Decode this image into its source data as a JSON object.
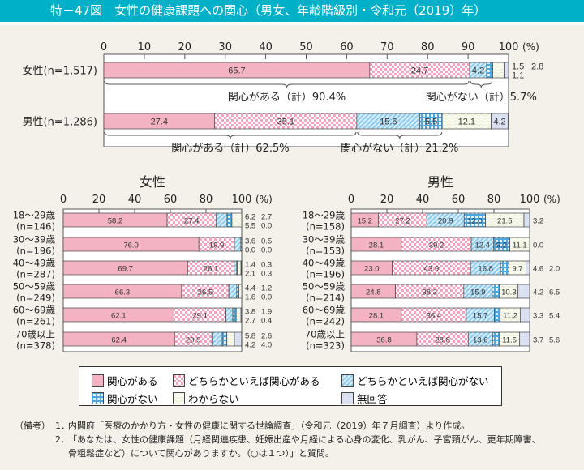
{
  "title": "特－47図　女性の健康課題への関心（男女、年齢階級別・令和元（2019）年）",
  "legend": [
    {
      "label": "関心がある",
      "pattern": "p0"
    },
    {
      "label": "どちらかといえば関心がある",
      "pattern": "p1"
    },
    {
      "label": "どちらかといえば関心がない",
      "pattern": "p2"
    },
    {
      "label": "関心がない",
      "pattern": "p3"
    },
    {
      "label": "わからない",
      "pattern": "p4"
    },
    {
      "label": "無回答",
      "pattern": "p5"
    }
  ],
  "colors": {
    "title_bar": "#00b0c8",
    "interested": "#f4b3c2",
    "somewhat_interested": "#f7a6c0",
    "somewhat_not": "#8fcbec",
    "not_interested": "#4ea6de",
    "dont_know": "#f3f6e2",
    "no_answer": "#dce2f2"
  },
  "notes": {
    "head": "（備考）",
    "items": [
      {
        "num": "1．",
        "lines": [
          "内閣府「医療のかかり方・女性の健康に関する世論調査」（令和元（2019）年７月調査）より作成。"
        ]
      },
      {
        "num": "2．",
        "lines": [
          "「あなたは、女性の健康課題（月経関連疾患、妊娠出産や月経による心身の変化、乳がん、子宮頸がん、更年期障害、",
          "骨粗鬆症など）について関心がありますか。（○は１つ）」と質問。"
        ]
      }
    ]
  },
  "chart_data": [
    {
      "type": "bar",
      "orientation": "horizontal",
      "stacked": true,
      "title": "",
      "xlabel": "(%)",
      "xlim": [
        0,
        100
      ],
      "xticks": [
        0,
        10,
        20,
        30,
        40,
        50,
        60,
        70,
        80,
        90,
        100
      ],
      "series": [
        "関心がある",
        "どちらかといえば関心がある",
        "どちらかといえば関心がない",
        "関心がない",
        "わからない",
        "無回答"
      ],
      "rows": [
        {
          "label": "女性(n=1,517)",
          "values": [
            65.7,
            24.7,
            4.2,
            1.5,
            2.8,
            1.1
          ],
          "summaries": [
            {
              "label": "関心がある（計）90.4%",
              "from": 0,
              "to": 90.4
            },
            {
              "label": "関心がない（計）5.7%",
              "from": 90.4,
              "to": 96.1
            }
          ]
        },
        {
          "label": "男性(n=1,286)",
          "values": [
            27.4,
            35.1,
            15.6,
            5.5,
            12.1,
            4.2
          ],
          "summaries": [
            {
              "label": "関心がある（計）62.5%",
              "from": 0,
              "to": 62.5
            },
            {
              "label": "関心がない（計）21.2%",
              "from": 62.5,
              "to": 83.7
            }
          ]
        }
      ]
    },
    {
      "type": "bar",
      "orientation": "horizontal",
      "stacked": true,
      "title": "女性",
      "xlabel": "(%)",
      "xlim": [
        0,
        100
      ],
      "xticks": [
        0,
        20,
        40,
        60,
        80,
        100
      ],
      "series": [
        "関心がある",
        "どちらかといえば関心がある",
        "どちらかといえば関心がない",
        "関心がない",
        "わからない",
        "無回答"
      ],
      "rows": [
        {
          "label": "18～29歳",
          "n": "(n=146)",
          "values": [
            58.2,
            27.4,
            6.2,
            2.7,
            5.5,
            0.0
          ]
        },
        {
          "label": "30～39歳",
          "n": "(n=196)",
          "values": [
            76.0,
            19.9,
            3.6,
            0.5,
            0.0,
            0.0
          ]
        },
        {
          "label": "40～49歳",
          "n": "(n=287)",
          "values": [
            69.7,
            26.1,
            1.4,
            0.3,
            2.1,
            0.3
          ]
        },
        {
          "label": "50～59歳",
          "n": "(n=249)",
          "values": [
            66.3,
            26.5,
            4.4,
            1.2,
            1.6,
            0.0
          ]
        },
        {
          "label": "60～69歳",
          "n": "(n=261)",
          "values": [
            62.1,
            29.1,
            3.8,
            1.9,
            2.7,
            0.4
          ]
        },
        {
          "label": "70歳以上",
          "n": "(n=378)",
          "values": [
            62.4,
            20.9,
            5.8,
            2.6,
            4.2,
            4.0
          ]
        }
      ]
    },
    {
      "type": "bar",
      "orientation": "horizontal",
      "stacked": true,
      "title": "男性",
      "xlabel": "(%)",
      "xlim": [
        0,
        100
      ],
      "xticks": [
        0,
        20,
        40,
        60,
        80,
        100
      ],
      "series": [
        "関心がある",
        "どちらかといえば関心がある",
        "どちらかといえば関心がない",
        "関心がない",
        "わからない",
        "無回答"
      ],
      "rows": [
        {
          "label": "18～29歳",
          "n": "(n=158)",
          "values": [
            15.2,
            27.2,
            20.9,
            12.0,
            21.5,
            3.2
          ]
        },
        {
          "label": "30～39歳",
          "n": "(n=153)",
          "values": [
            28.1,
            39.2,
            12.4,
            9.2,
            11.1,
            0.0
          ]
        },
        {
          "label": "40～49歳",
          "n": "(n=196)",
          "values": [
            23.0,
            43.9,
            16.8,
            4.6,
            9.7,
            2.0
          ]
        },
        {
          "label": "50～59歳",
          "n": "(n=214)",
          "values": [
            24.8,
            38.3,
            15.9,
            4.2,
            10.3,
            6.5
          ]
        },
        {
          "label": "60～69歳",
          "n": "(n=242)",
          "values": [
            28.1,
            36.4,
            15.7,
            3.3,
            11.2,
            5.4
          ]
        },
        {
          "label": "70歳以上",
          "n": "(n=323)",
          "values": [
            36.8,
            28.8,
            13.6,
            3.7,
            11.5,
            5.6
          ]
        }
      ]
    }
  ]
}
